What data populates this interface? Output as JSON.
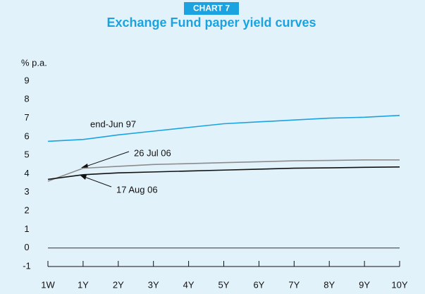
{
  "chart_data": {
    "type": "line",
    "badge": "CHART 7",
    "title": "Exchange Fund paper yield curves",
    "y_label": "% p.a.",
    "categories": [
      "1W",
      "1Y",
      "2Y",
      "3Y",
      "4Y",
      "5Y",
      "6Y",
      "7Y",
      "8Y",
      "9Y",
      "10Y"
    ],
    "series": [
      {
        "name": "end-Jun 97",
        "color": "#1aa3e0",
        "values": [
          5.75,
          5.85,
          6.1,
          6.3,
          6.5,
          6.7,
          6.8,
          6.9,
          7.0,
          7.05,
          7.15
        ]
      },
      {
        "name": "26 Jul 06",
        "color": "#8c8c8c",
        "values": [
          3.6,
          4.3,
          4.4,
          4.5,
          4.55,
          4.6,
          4.65,
          4.7,
          4.72,
          4.75,
          4.75
        ]
      },
      {
        "name": "17 Aug 06",
        "color": "#111111",
        "values": [
          3.7,
          3.95,
          4.05,
          4.1,
          4.15,
          4.2,
          4.25,
          4.3,
          4.32,
          4.35,
          4.37
        ]
      }
    ],
    "ylim": [
      -1,
      9
    ],
    "yticks": [
      -1,
      0,
      1,
      2,
      3,
      4,
      5,
      6,
      7,
      8,
      9
    ]
  }
}
